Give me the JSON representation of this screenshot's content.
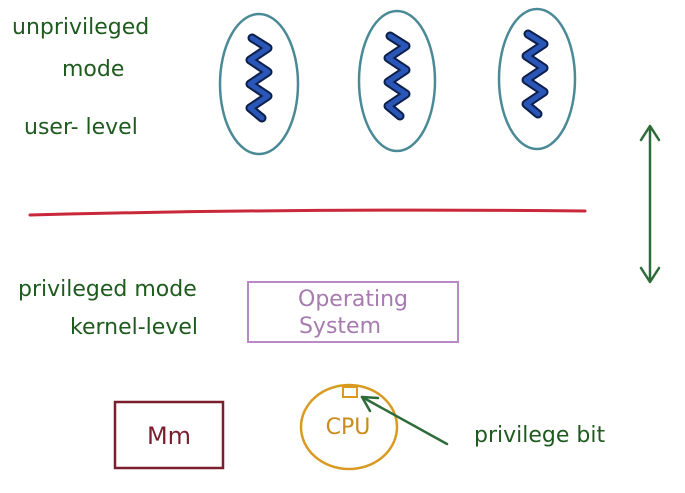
{
  "labels": {
    "unprivileged_line1": "unprivileged",
    "unprivileged_line2": "mode",
    "user_level": "user- level",
    "privileged_mode": "privileged mode",
    "kernel_level": "kernel-level",
    "os_line1": "Operating",
    "os_line2": "System",
    "memory": "Mm",
    "cpu": "CPU",
    "privilege_bit": "privilege bit"
  },
  "colors": {
    "green_text": "#1f5a1f",
    "thread_ellipse": "#4a8a96",
    "thread_squiggle": "#1c3d8f",
    "boundary_line": "#c8283a",
    "os_box": "#b98ac3",
    "memory_box": "#7a1f2e",
    "cpu_circle": "#d99a22",
    "arrow_green": "#2e6b3a"
  },
  "threads": [
    {
      "icon": "thread-squiggle-icon"
    },
    {
      "icon": "thread-squiggle-icon"
    },
    {
      "icon": "thread-squiggle-icon"
    }
  ]
}
